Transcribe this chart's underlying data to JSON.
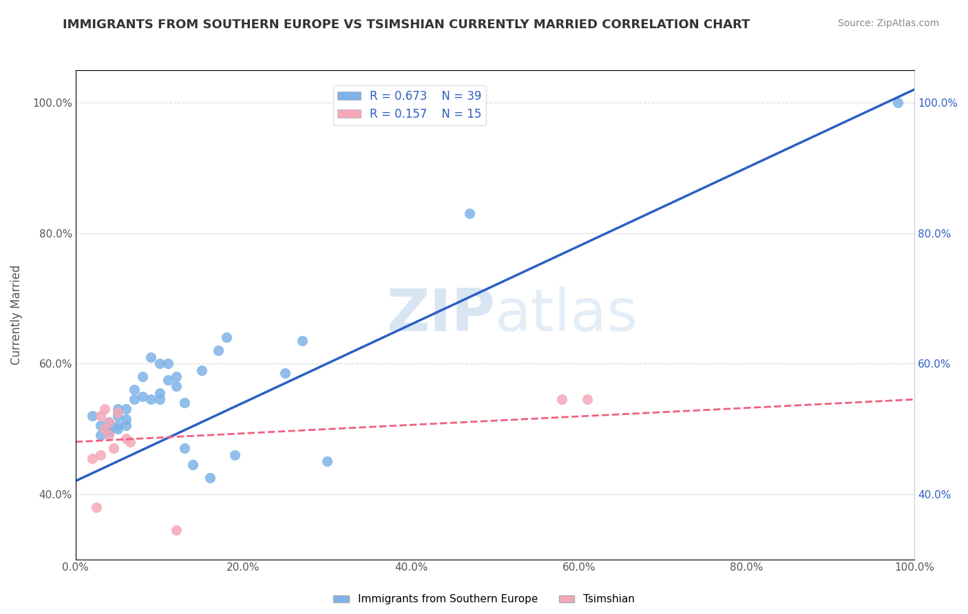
{
  "title": "IMMIGRANTS FROM SOUTHERN EUROPE VS TSIMSHIAN CURRENTLY MARRIED CORRELATION CHART",
  "source": "Source: ZipAtlas.com",
  "xlabel": "",
  "ylabel": "Currently Married",
  "xlim": [
    0.0,
    1.0
  ],
  "ylim": [
    0.3,
    1.05
  ],
  "xtick_labels": [
    "0.0%",
    "20.0%",
    "40.0%",
    "60.0%",
    "80.0%",
    "100.0%"
  ],
  "xtick_vals": [
    0.0,
    0.2,
    0.4,
    0.6,
    0.8,
    1.0
  ],
  "ytick_labels": [
    "40.0%",
    "60.0%",
    "80.0%",
    "100.0%"
  ],
  "ytick_vals": [
    0.4,
    0.6,
    0.8,
    1.0
  ],
  "blue_R": 0.673,
  "blue_N": 39,
  "pink_R": 0.157,
  "pink_N": 15,
  "blue_color": "#7EB3E8",
  "pink_color": "#F4A8B8",
  "blue_line_color": "#2B5FC4",
  "pink_line_color": "#F06080",
  "watermark_zip": "ZIP",
  "watermark_atlas": "atlas",
  "legend_label_blue": "Immigrants from Southern Europe",
  "legend_label_pink": "Tsimshian",
  "blue_scatter_x": [
    0.02,
    0.03,
    0.03,
    0.04,
    0.04,
    0.04,
    0.05,
    0.05,
    0.05,
    0.05,
    0.06,
    0.06,
    0.06,
    0.07,
    0.07,
    0.08,
    0.08,
    0.09,
    0.09,
    0.1,
    0.1,
    0.1,
    0.11,
    0.11,
    0.12,
    0.12,
    0.13,
    0.13,
    0.14,
    0.15,
    0.16,
    0.17,
    0.18,
    0.19,
    0.25,
    0.27,
    0.3,
    0.47,
    0.98
  ],
  "blue_scatter_y": [
    0.52,
    0.505,
    0.49,
    0.51,
    0.495,
    0.5,
    0.5,
    0.505,
    0.52,
    0.53,
    0.505,
    0.515,
    0.53,
    0.545,
    0.56,
    0.55,
    0.58,
    0.545,
    0.61,
    0.545,
    0.555,
    0.6,
    0.575,
    0.6,
    0.565,
    0.58,
    0.54,
    0.47,
    0.445,
    0.59,
    0.425,
    0.62,
    0.64,
    0.46,
    0.585,
    0.635,
    0.45,
    0.83,
    1.0
  ],
  "pink_scatter_x": [
    0.02,
    0.025,
    0.03,
    0.03,
    0.035,
    0.035,
    0.04,
    0.04,
    0.045,
    0.05,
    0.06,
    0.065,
    0.12,
    0.58,
    0.61
  ],
  "pink_scatter_y": [
    0.455,
    0.38,
    0.46,
    0.52,
    0.5,
    0.53,
    0.49,
    0.51,
    0.47,
    0.525,
    0.485,
    0.48,
    0.345,
    0.545,
    0.545
  ],
  "blue_line_x": [
    0.0,
    1.0
  ],
  "blue_line_y_start": 0.42,
  "blue_line_y_end": 1.02,
  "pink_line_x": [
    0.0,
    1.0
  ],
  "pink_line_y_start": 0.48,
  "pink_line_y_end": 0.545,
  "background_color": "#ffffff",
  "grid_color": "#cccccc"
}
